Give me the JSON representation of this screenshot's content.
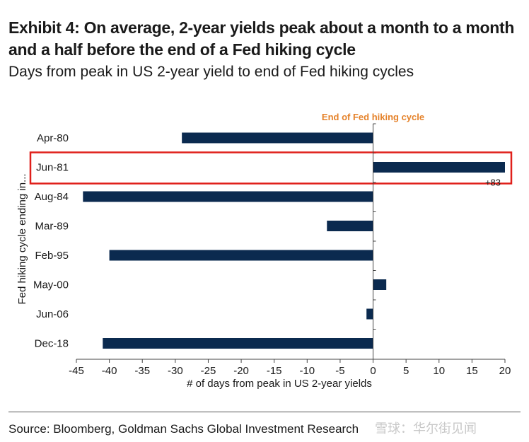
{
  "header": {
    "title": "Exhibit 4: On average, 2-year yields peak about a month to a month and a half before the end of a Fed hiking cycle",
    "subtitle": "Days from peak in US 2-year yield to end of Fed hiking cycles"
  },
  "footer": {
    "source": "Source: Bloomberg, Goldman Sachs Global Investment Research",
    "watermark": "雪球：华尔街见闻"
  },
  "colors": {
    "bar": "#0b2a4f",
    "highlight": "#e0201b",
    "annotation": "#e5822a"
  },
  "chart_data": {
    "type": "bar",
    "orientation": "horizontal",
    "categories": [
      "Apr-80",
      "Jun-81",
      "Aug-84",
      "Mar-89",
      "Feb-95",
      "May-00",
      "Jun-06",
      "Dec-18"
    ],
    "values": [
      -29,
      20,
      -44,
      -7,
      -40,
      2,
      -1,
      -41
    ],
    "xlabel": "# of days from peak in US 2-year yields",
    "ylabel": "Fed hiking cycle ending in...",
    "xlim": [
      -45,
      20
    ],
    "xticks": [
      -45,
      -40,
      -35,
      -30,
      -25,
      -20,
      -15,
      -10,
      -5,
      0,
      5,
      10,
      15,
      20
    ],
    "grid": false,
    "legend": "none",
    "annotations": [
      {
        "text": "End of Fed hiking cycle",
        "x": 0
      },
      {
        "text": "+83",
        "category": "Jun-81"
      }
    ],
    "highlighted_category": "Jun-81"
  }
}
